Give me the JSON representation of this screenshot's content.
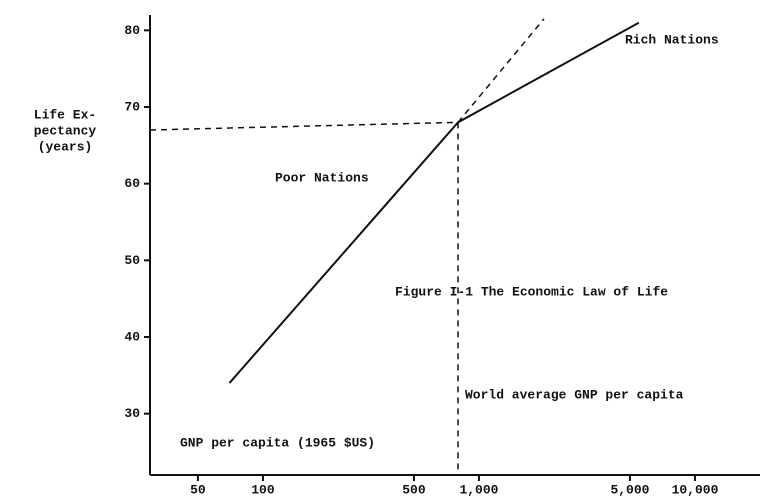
{
  "chart_data": {
    "type": "line",
    "ylabel": [
      "Life Ex-",
      "pectancy",
      "(years)"
    ],
    "xlabel": "GNP per capita (1965 $US)",
    "annotations": [
      "Rich Nations",
      "Poor Nations",
      "Figure I-1  The Economic Law of Life",
      "World average GNP per capita"
    ],
    "xscale": "log",
    "xlim": [
      30,
      20000
    ],
    "ylim": [
      22,
      82
    ],
    "xticks": [
      50,
      100,
      500,
      {
        "value": 1000,
        "label": "1,000"
      },
      {
        "value": 5000,
        "label": "5,000"
      },
      {
        "value": 10000,
        "label": "10,000"
      }
    ],
    "yticks": [
      30,
      40,
      50,
      60,
      70,
      80
    ],
    "grid": false,
    "series": [
      {
        "color": "#111111",
        "style": "solid",
        "x": [
          70,
          800,
          5500
        ],
        "values": [
          34,
          68,
          81
        ]
      },
      {
        "color": "#111111",
        "style": "dashed",
        "x": [
          800,
          2000
        ],
        "values": [
          68,
          81.5
        ]
      },
      {
        "color": "#111111",
        "style": "dashed",
        "x": [
          30,
          800
        ],
        "values": [
          67,
          68
        ]
      },
      {
        "color": "#111111",
        "style": "dashed",
        "x": [
          800,
          800
        ],
        "values": [
          68,
          22
        ]
      }
    ]
  }
}
